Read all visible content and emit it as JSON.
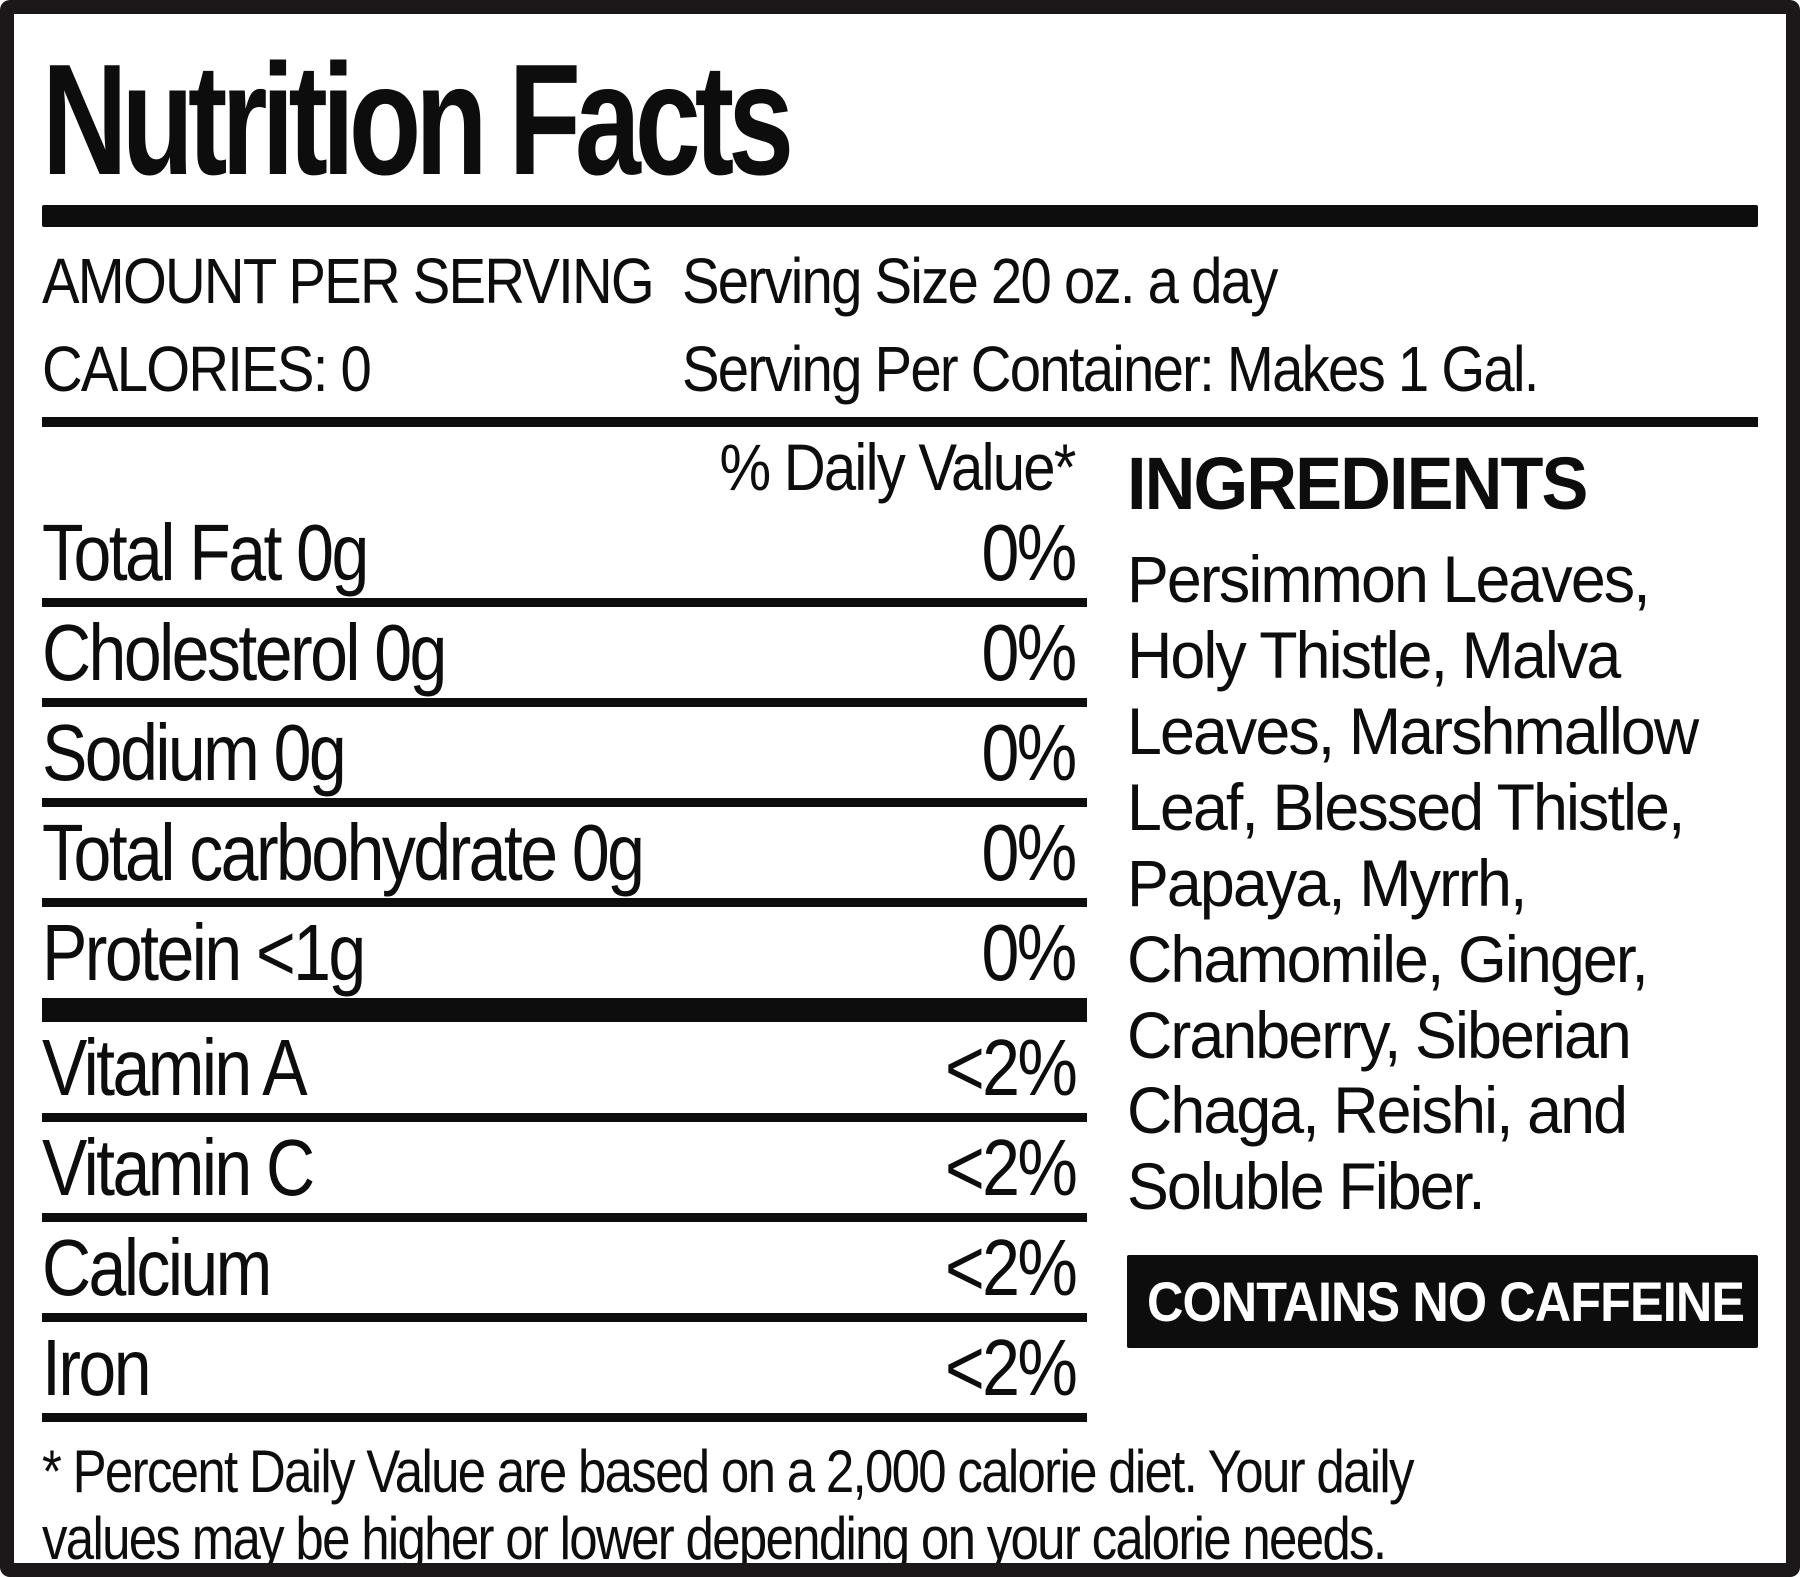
{
  "label": {
    "title": "Nutrition Facts",
    "serving": {
      "amount_per_serving": "AMOUNT PER SERVING",
      "calories": "CALORIES: 0",
      "serving_size": "Serving Size 20 oz. a day",
      "servings_per_container": "Serving Per Container: Makes 1 Gal."
    },
    "daily_value_header": "% Daily Value*",
    "nutrients": [
      {
        "name": "Total Fat 0g",
        "daily_value": "0%"
      },
      {
        "name": "Cholesterol 0g",
        "daily_value": "0%"
      },
      {
        "name": "Sodium 0g",
        "daily_value": "0%"
      },
      {
        "name": "Total carbohydrate 0g",
        "daily_value": "0%"
      },
      {
        "name": "Protein <1g",
        "daily_value": "0%"
      }
    ],
    "micronutrients": [
      {
        "name": "Vitamin A",
        "daily_value": "<2%"
      },
      {
        "name": "Vitamin C",
        "daily_value": "<2%"
      },
      {
        "name": "Calcium",
        "daily_value": "<2%"
      },
      {
        "name": "Iron",
        "daily_value": "<2%"
      }
    ],
    "ingredients": {
      "heading": "INGREDIENTS",
      "lines": [
        "Persimmon Leaves,",
        "Holy Thistle, Malva",
        "Leaves, Marshmallow",
        "Leaf, Blessed Thistle,",
        "Papaya, Myrrh,",
        "Chamomile, Ginger,",
        "Cranberry, Siberian",
        "Chaga, Reishi, and",
        "Soluble Fiber."
      ]
    },
    "caffeine_badge": "CONTAINS NO CAFFEINE",
    "footnote_lines": [
      "* Percent Daily Value are based on a 2,000 calorie diet. Your daily",
      "values may be higher or lower depending on your calorie needs."
    ]
  },
  "colors": {
    "text": "#0d0d0d",
    "border": "#1c1719",
    "rule": "#0d0d0d",
    "badge_background": "#0d0d0d",
    "badge_text": "#ffffff",
    "background": "#ffffff"
  }
}
